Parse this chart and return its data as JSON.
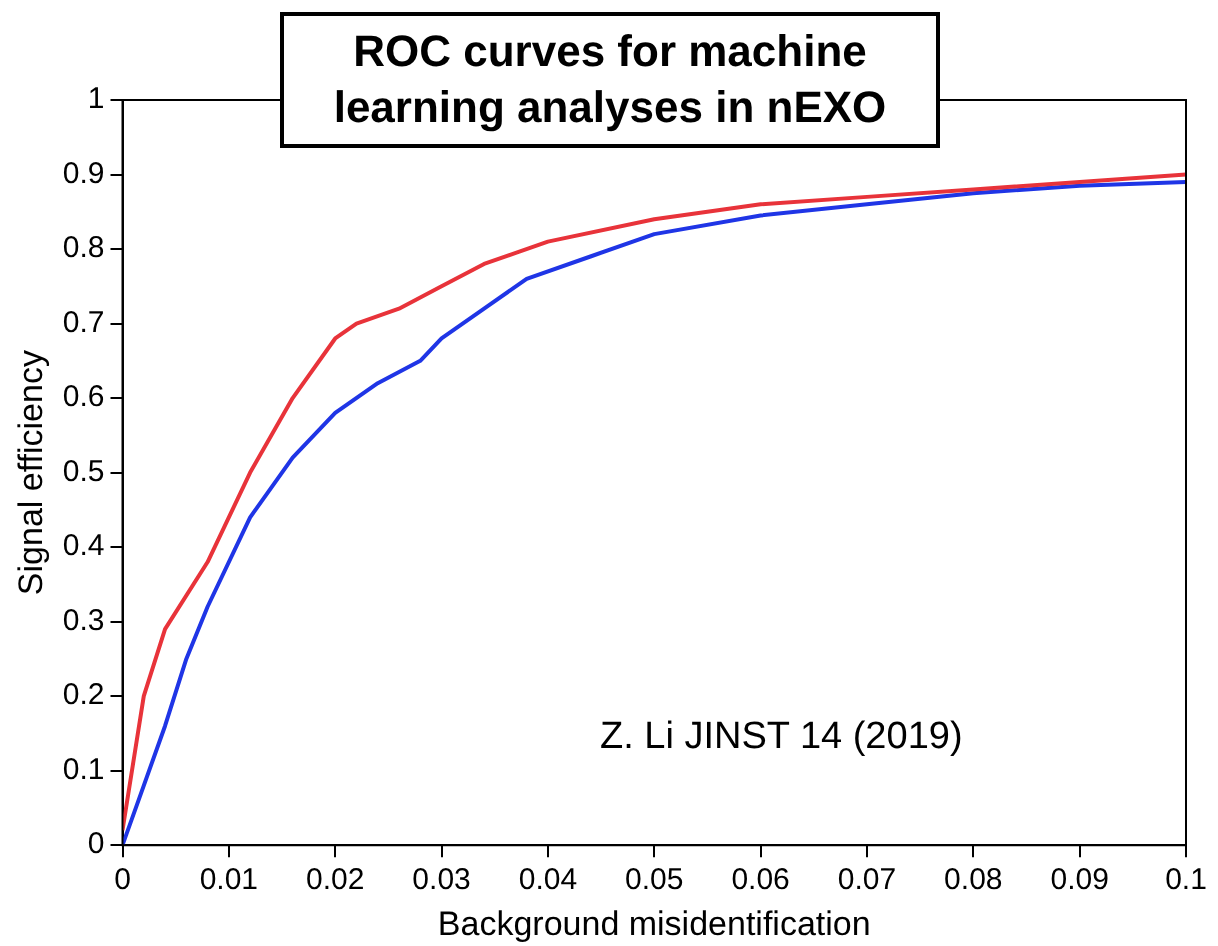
{
  "chart_data": {
    "type": "line",
    "title": "ROC curves for machine learning analyses in nEXO",
    "xlabel": "Background misidentification",
    "ylabel": "Signal efficiency",
    "annotations": [
      "Z. Li JINST 14 (2019)"
    ],
    "series": [
      {
        "color": "#e8333a",
        "x": [
          0,
          0.002,
          0.004,
          0.008,
          0.012,
          0.016,
          0.02,
          0.022,
          0.026,
          0.03,
          0.034,
          0.04,
          0.05,
          0.06,
          0.07,
          0.08,
          0.09,
          0.1
        ],
        "values": [
          0.02,
          0.2,
          0.29,
          0.38,
          0.5,
          0.6,
          0.68,
          0.7,
          0.72,
          0.75,
          0.78,
          0.81,
          0.84,
          0.86,
          0.87,
          0.88,
          0.89,
          0.9
        ]
      },
      {
        "color": "#1f35e6",
        "x": [
          0,
          0.002,
          0.004,
          0.006,
          0.008,
          0.012,
          0.016,
          0.02,
          0.024,
          0.028,
          0.03,
          0.034,
          0.038,
          0.044,
          0.05,
          0.06,
          0.07,
          0.08,
          0.09,
          0.1
        ],
        "values": [
          0,
          0.08,
          0.16,
          0.25,
          0.32,
          0.44,
          0.52,
          0.58,
          0.62,
          0.65,
          0.68,
          0.72,
          0.76,
          0.79,
          0.82,
          0.845,
          0.86,
          0.875,
          0.885,
          0.89
        ]
      }
    ],
    "xlim": [
      0,
      0.1
    ],
    "xticks": [
      0,
      0.01,
      0.02,
      0.03,
      0.04,
      0.05,
      0.06,
      0.07,
      0.08,
      0.09,
      0.1
    ],
    "ylim": [
      0,
      1
    ],
    "yticks": [
      0,
      0.1,
      0.2,
      0.3,
      0.4,
      0.5,
      0.6,
      0.7,
      0.8,
      0.9,
      1
    ],
    "grid": false,
    "legend": false,
    "marker": "none",
    "line_style": "solid"
  }
}
